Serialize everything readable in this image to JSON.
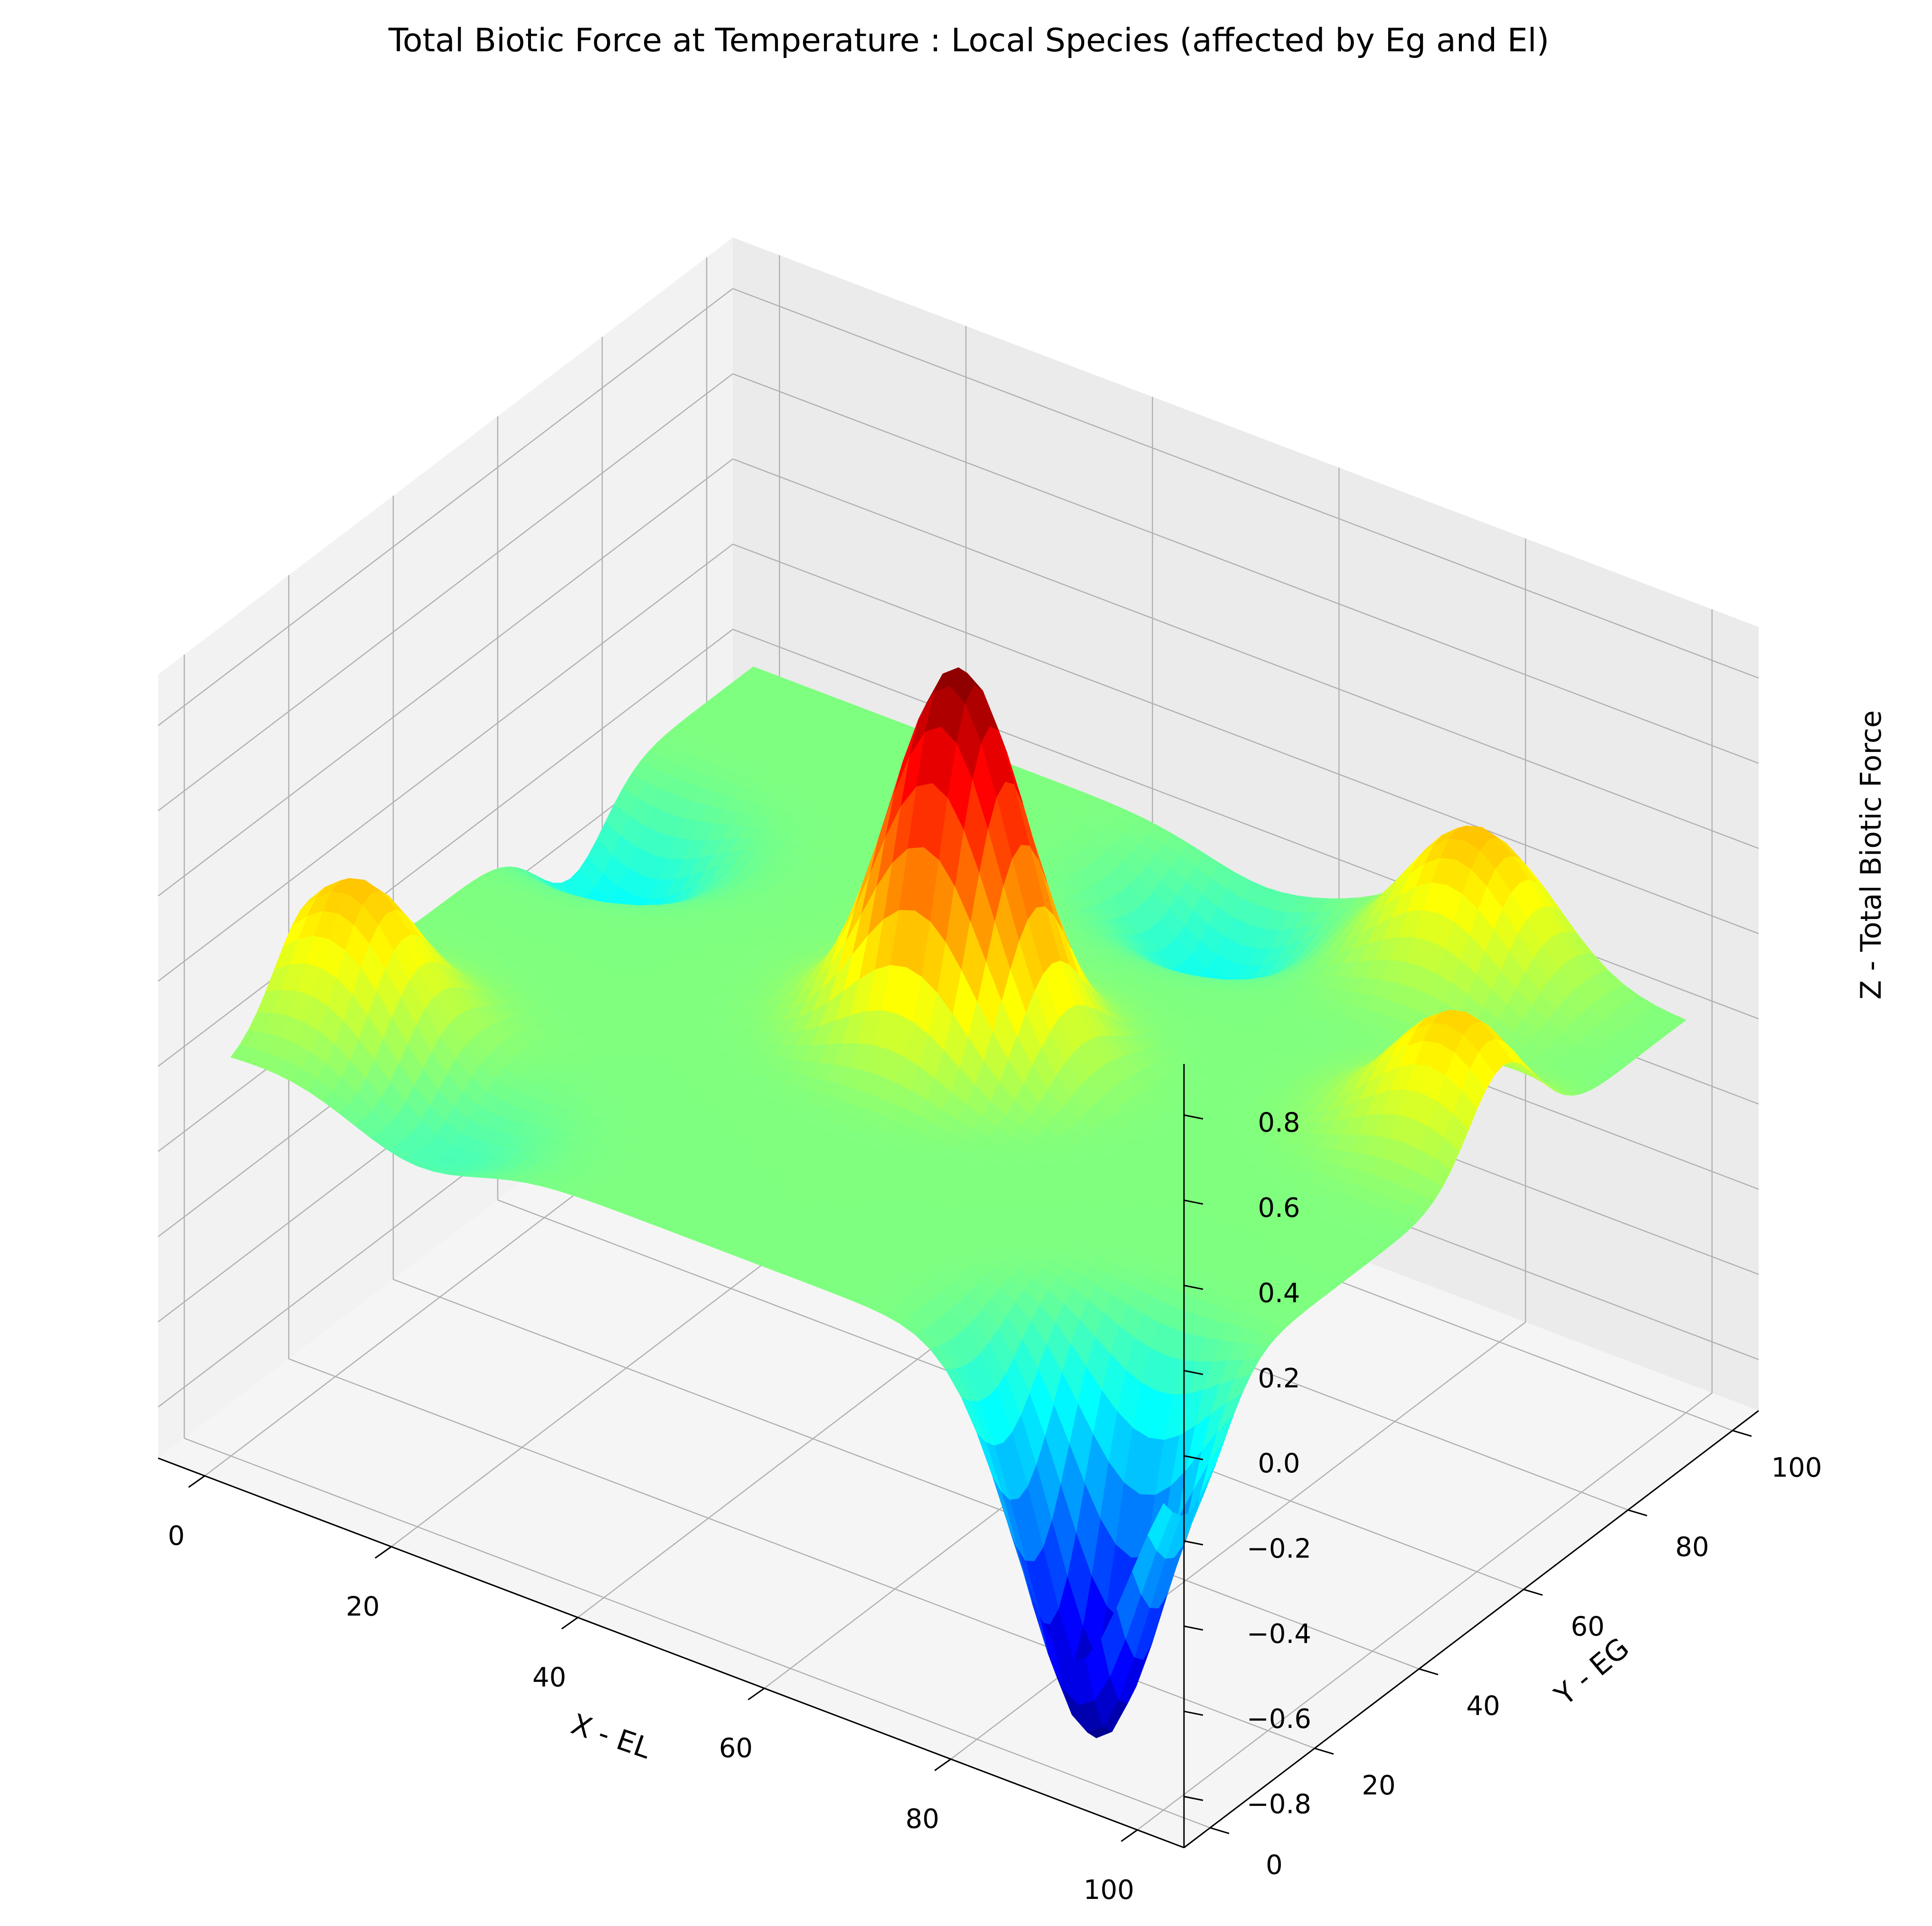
{
  "chart_data": {
    "type": "surface3d",
    "title": "Total Biotic Force at Temperature : Local Species (affected by Eg and El)",
    "xlabel": "X - EL",
    "ylabel": "Y - EG",
    "zlabel": "Z - Total Biotic Force",
    "xlim": [
      -5,
      105
    ],
    "ylim": [
      -5,
      105
    ],
    "zlim": [
      -0.92,
      0.92
    ],
    "x_ticks": [
      0,
      20,
      40,
      60,
      80,
      100
    ],
    "y_ticks": [
      0,
      20,
      40,
      60,
      80,
      100
    ],
    "z_ticks": [
      -0.8,
      -0.6,
      -0.4,
      -0.2,
      0.0,
      0.2,
      0.4,
      0.6,
      0.8
    ],
    "x_tick_labels": [
      "0",
      "20",
      "40",
      "60",
      "80",
      "100"
    ],
    "y_tick_labels": [
      "0",
      "20",
      "40",
      "60",
      "80",
      "100"
    ],
    "z_tick_labels": [
      "−0.8",
      "−0.6",
      "−0.4",
      "−0.2",
      "0.0",
      "0.2",
      "0.4",
      "0.6",
      "0.8"
    ],
    "colormap": "jet",
    "grid": true,
    "features": [
      {
        "x": 5,
        "y": 15,
        "z": 0.33
      },
      {
        "x": 5,
        "y": 65,
        "z": -0.23
      },
      {
        "x": 20,
        "y": 5,
        "z": -0.1
      },
      {
        "x": 50,
        "y": 50,
        "z": 0.88
      },
      {
        "x": 55,
        "y": 90,
        "z": -0.2
      },
      {
        "x": 80,
        "y": 95,
        "z": 0.33
      },
      {
        "x": 95,
        "y": 65,
        "z": 0.3
      },
      {
        "x": 90,
        "y": 5,
        "z": -0.88
      }
    ]
  }
}
